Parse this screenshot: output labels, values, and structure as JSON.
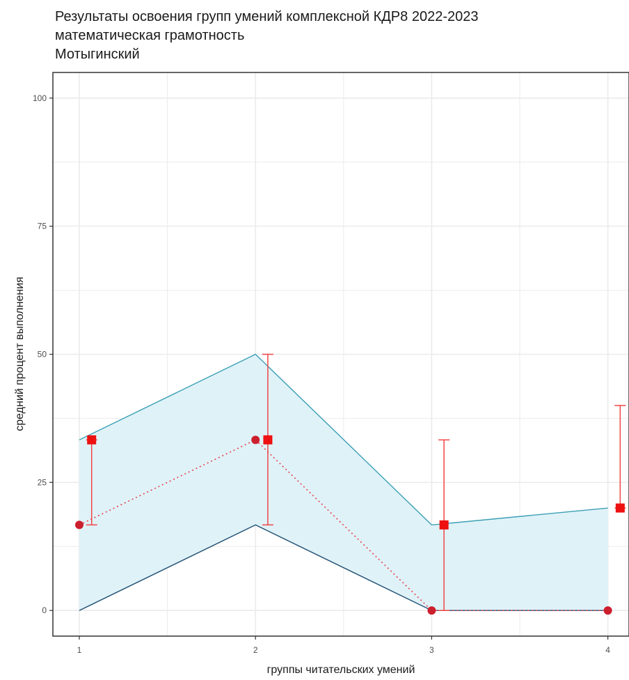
{
  "chart_data": {
    "type": "line",
    "title_lines": [
      "Результаты освоения групп умений комплексной КДР8 2022-2023",
      "математическая грамотность",
      "Мотыгинский"
    ],
    "xlabel": "группы читательских умений",
    "ylabel": "средний процент выполнения",
    "x": [
      1,
      2,
      3,
      4
    ],
    "x_tick_labels": [
      "1",
      "2",
      "3",
      "4"
    ],
    "y_ticks": [
      0,
      25,
      50,
      75,
      100
    ],
    "y_tick_labels": [
      "0",
      "25",
      "50",
      "75",
      "100"
    ],
    "xlim": [
      0.85,
      4.12
    ],
    "ylim": [
      -5,
      105
    ],
    "grid": true,
    "band": {
      "upper": [
        33.3,
        50.0,
        16.7,
        20.0
      ],
      "lower": [
        0,
        16.7,
        0,
        0
      ]
    },
    "series": [
      {
        "values": [
          16.7,
          33.3,
          0,
          0
        ],
        "marker": "circle",
        "line": "dotted"
      },
      {
        "values": [
          33.3,
          33.3,
          16.7,
          20.0
        ],
        "marker": "square",
        "x_offset": 0.07,
        "error_low": [
          16.7,
          16.7,
          0,
          20.0
        ],
        "error_high": [
          33.3,
          50.0,
          33.3,
          40.0
        ]
      }
    ],
    "colors": {
      "band_fill": "#dff2f8",
      "band_upper": "#3b9fb5",
      "band_lower": "#1f4f73",
      "circle": "#cc1f2e",
      "square": "#ee1111",
      "error_bar": "#f04545",
      "dotted": "#e8404a",
      "grid": "#ebebeb",
      "panel_border": "#333333"
    }
  }
}
